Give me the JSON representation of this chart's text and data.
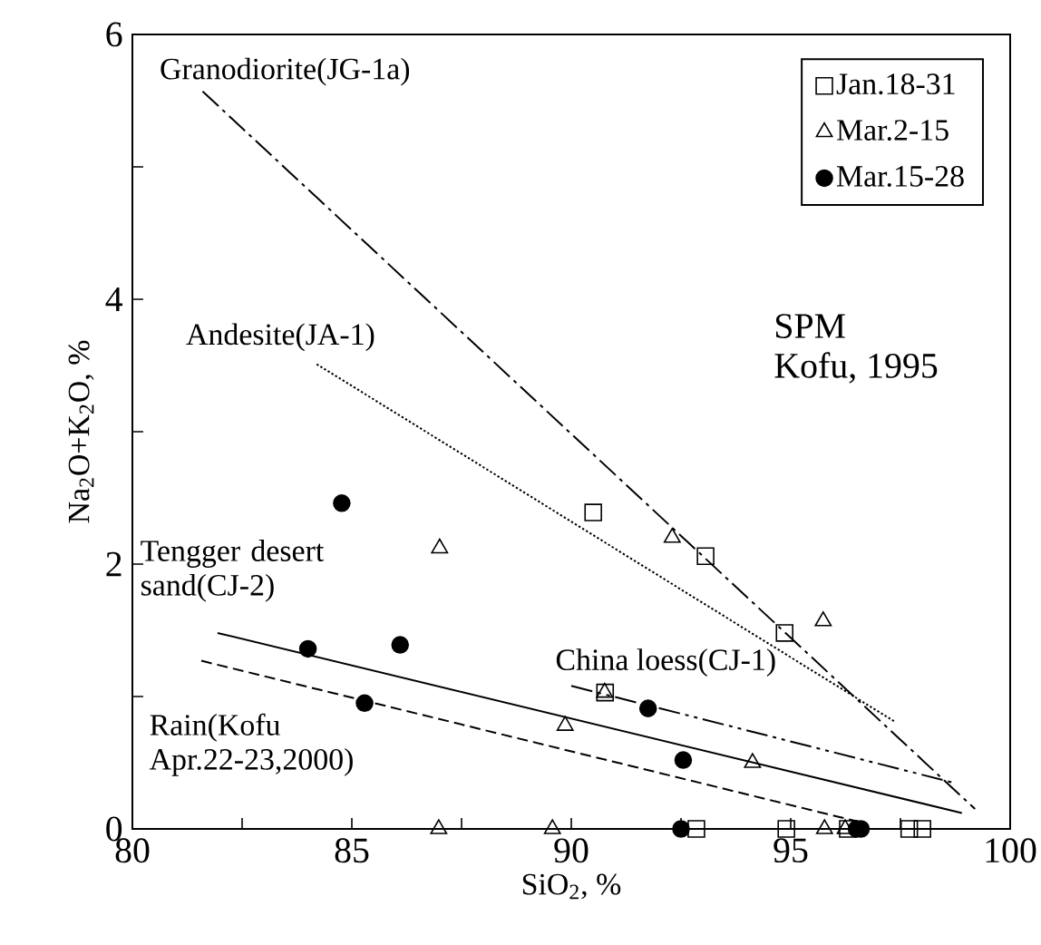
{
  "chart_data": {
    "type": "scatter",
    "xlabel": "SiO$_{2}$, %",
    "ylabel": "Na$_{2}$O+K$_{2}$O, %",
    "xlim": [
      80,
      100
    ],
    "ylim": [
      0,
      6
    ],
    "xticks": [
      80,
      {
        "value": 82.5,
        "label": null
      },
      85,
      {
        "value": 87.5,
        "label": null
      },
      90,
      {
        "value": 92.5,
        "label": null
      },
      95,
      {
        "value": 97.5,
        "label": null
      },
      100
    ],
    "yticks": [
      0,
      {
        "value": 1,
        "label": null
      },
      2,
      {
        "value": 3,
        "label": null
      },
      4,
      {
        "value": 5,
        "label": null
      },
      6
    ],
    "legend": "top right",
    "grid": false,
    "annotations": [
      "SPM",
      "Kofu, 1995"
    ],
    "series": [
      {
        "name": "Jan.18-31",
        "color": "#000000",
        "marker": "square",
        "x": [
          90.5,
          93.06,
          94.86,
          90.77,
          92.85,
          94.9,
          96.3,
          97.7,
          98.0
        ],
        "values": [
          2.39,
          2.06,
          1.48,
          1.03,
          0,
          0,
          0,
          0,
          0
        ]
      },
      {
        "name": "Mar.2-15",
        "color": "#000000",
        "marker": "triangle",
        "x": [
          87.0,
          92.3,
          95.74,
          90.76,
          89.86,
          94.13,
          86.98,
          89.57,
          95.77,
          96.24
        ],
        "values": [
          2.12,
          2.2,
          1.57,
          1.03,
          0.78,
          0.5,
          0,
          0,
          0,
          0
        ]
      },
      {
        "name": "Mar.15-28",
        "color": "#000000",
        "marker": "circle",
        "x": [
          84.77,
          84.0,
          86.1,
          85.29,
          91.75,
          92.55,
          92.5,
          96.5,
          96.6
        ],
        "values": [
          2.46,
          1.36,
          1.39,
          0.95,
          0.91,
          0.52,
          0,
          0,
          0
        ]
      },
      {
        "type": "line",
        "name": "Granodiorite(JG-1a)",
        "color": "#000000",
        "line_style": "dashdot",
        "marker": "none",
        "x": [
          81.6,
          99.2
        ],
        "values": [
          5.57,
          0.15
        ]
      },
      {
        "type": "line",
        "name": "Andesite(JA-1)",
        "color": "#000000",
        "line_style": "dotted",
        "marker": "none",
        "x": [
          84.2,
          97.37
        ],
        "values": [
          3.51,
          0.81
        ]
      },
      {
        "type": "line",
        "name": "Tengger desert sand(CJ-2)",
        "color": "#000000",
        "line_style": "solid",
        "marker": "none",
        "x": [
          81.94,
          98.9
        ],
        "values": [
          1.48,
          0.12
        ]
      },
      {
        "type": "line",
        "name": "China loess(CJ-1)",
        "color": "#000000",
        "line_style": "dashdotdot",
        "marker": "none",
        "x": [
          90.0,
          98.7
        ],
        "values": [
          1.08,
          0.35
        ]
      },
      {
        "type": "line",
        "name": "Rain(Kofu Apr.22-23,2000)",
        "color": "#000000",
        "line_style": "dashed",
        "marker": "none",
        "x": [
          81.57,
          96.6
        ],
        "values": [
          1.27,
          0.05
        ]
      }
    ]
  }
}
